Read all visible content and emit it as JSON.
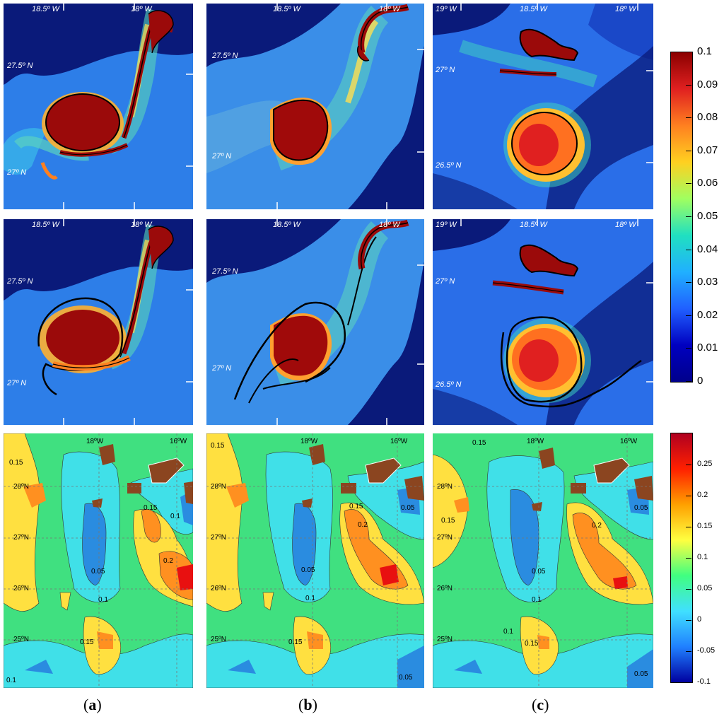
{
  "colorbar_top": {
    "ticks": [
      "0.1",
      "0.09",
      "0.08",
      "0.07",
      "0.06",
      "0.05",
      "0.04",
      "0.03",
      "0.02",
      "0.01",
      "0"
    ],
    "colors": [
      "#8b0000",
      "#e02020",
      "#ff8020",
      "#ffd020",
      "#a0ff60",
      "#20e0c0",
      "#20b0ff",
      "#2060ff",
      "#0000c0",
      "#00008b"
    ]
  },
  "colorbar_bottom": {
    "ticks": [
      "0.25",
      "0.2",
      "0.15",
      "0.1",
      "0.05",
      "0",
      "-0.05",
      "-0.1"
    ],
    "colors": [
      "#b00020",
      "#ff2000",
      "#ffa000",
      "#ffff40",
      "#40ff80",
      "#40e0ff",
      "#2080ff",
      "#0000a0"
    ]
  },
  "panels": {
    "a1": {
      "lon1": "18.5º W",
      "lon2": "18º W",
      "lat1": "27.5º N",
      "lat2": "27º N"
    },
    "b1": {
      "lon1": "18.5º W",
      "lon2": "18º W",
      "lat1": "27.5º N",
      "lat2": "27º N"
    },
    "c1": {
      "lon0": "19º W",
      "lon1": "18.5º W",
      "lon2": "18º W",
      "lat1": "27º N",
      "lat2": "26.5º N"
    },
    "a2": {
      "lon1": "18.5º W",
      "lon2": "18º W",
      "lat1": "27.5º N",
      "lat2": "27º N"
    },
    "b2": {
      "lon1": "18.5º W",
      "lon2": "18º W",
      "lat1": "27.5º N",
      "lat2": "27º N"
    },
    "c2": {
      "lon0": "19º W",
      "lon1": "18.5º W",
      "lon2": "18º W",
      "lat1": "27º N",
      "lat2": "26.5º N"
    }
  },
  "wind_panels": {
    "lon1": "18ºW",
    "lon2": "16ºW",
    "lats": [
      "28ºN",
      "27ºN",
      "26ºN",
      "25ºN"
    ],
    "a": {
      "labels": [
        "0.15",
        "0.15",
        "0.1",
        "0.05",
        "0.2",
        "0.1",
        "0.15",
        "0.1"
      ]
    },
    "b": {
      "labels": [
        "0.15",
        "0.15",
        "0.2",
        "0.05",
        "0.1",
        "0.15",
        "0.05",
        "0.05"
      ]
    },
    "c": {
      "labels": [
        "0.15",
        "0.15",
        "0.2",
        "0.05",
        "0.1",
        "0.15",
        "0.1",
        "0.05",
        "0.05"
      ]
    }
  },
  "captions": {
    "a": {
      "open": "(",
      "letter": "a",
      "close": ")"
    },
    "b": {
      "open": "(",
      "letter": "b",
      "close": ")"
    },
    "c": {
      "open": "(",
      "letter": "c",
      "close": ")"
    }
  }
}
